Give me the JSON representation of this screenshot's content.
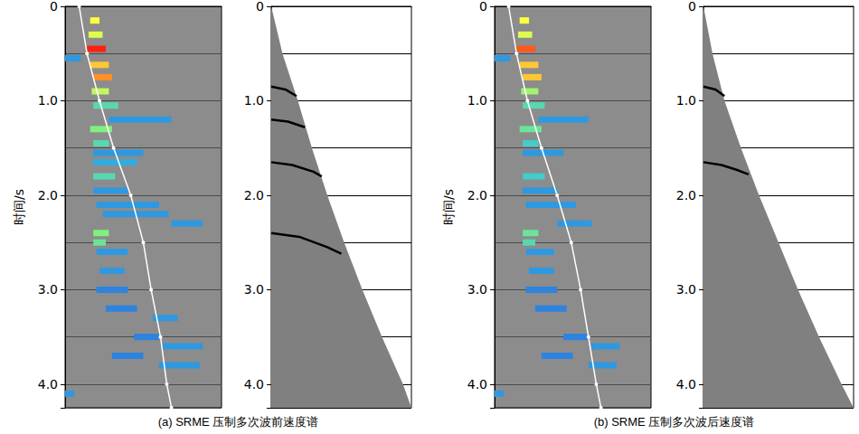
{
  "chart_data": [
    {
      "type": "heatmap",
      "title": "(a) SRME 压制多次波前速度谱",
      "ylabel": "时间/s",
      "xlim": [
        0,
        100
      ],
      "ylim": [
        0,
        4.25
      ],
      "yticks": [
        0,
        {
          "value": 1,
          "label": "1.0"
        },
        {
          "value": 2,
          "label": "2.0"
        },
        {
          "value": 3,
          "label": "3.0"
        },
        {
          "value": 4,
          "label": "4.0"
        }
      ],
      "tick_labels": "y",
      "grid": true,
      "amplitude_range": [
        0,
        1
      ],
      "colorscale": [
        "#1f4fd6",
        "#2b6fe0",
        "#30c0e0",
        "#80f080",
        "#ffff40",
        "#ff2010"
      ],
      "cells": [
        [
          0.15,
          16,
          22,
          0.8
        ],
        [
          0.3,
          15,
          24,
          0.75
        ],
        [
          0.45,
          14,
          26,
          1.0
        ],
        [
          0.55,
          0,
          10,
          0.3
        ],
        [
          0.62,
          16,
          28,
          0.85
        ],
        [
          0.75,
          18,
          30,
          0.9
        ],
        [
          0.9,
          17,
          28,
          0.7
        ],
        [
          1.05,
          18,
          34,
          0.5
        ],
        [
          1.2,
          28,
          68,
          0.3
        ],
        [
          1.3,
          16,
          30,
          0.6
        ],
        [
          1.45,
          18,
          28,
          0.5
        ],
        [
          1.55,
          18,
          50,
          0.3
        ],
        [
          1.65,
          18,
          46,
          0.35
        ],
        [
          1.8,
          18,
          32,
          0.5
        ],
        [
          1.95,
          18,
          40,
          0.3
        ],
        [
          2.1,
          20,
          60,
          0.3
        ],
        [
          2.2,
          24,
          66,
          0.3
        ],
        [
          2.3,
          68,
          88,
          0.3
        ],
        [
          2.4,
          18,
          28,
          0.6
        ],
        [
          2.5,
          18,
          26,
          0.55
        ],
        [
          2.6,
          20,
          40,
          0.3
        ],
        [
          2.8,
          22,
          38,
          0.3
        ],
        [
          3.0,
          20,
          40,
          0.25
        ],
        [
          3.2,
          26,
          46,
          0.25
        ],
        [
          3.3,
          56,
          72,
          0.3
        ],
        [
          3.5,
          44,
          60,
          0.25
        ],
        [
          3.6,
          62,
          88,
          0.3
        ],
        [
          3.7,
          30,
          50,
          0.25
        ],
        [
          3.8,
          60,
          86,
          0.3
        ],
        [
          4.1,
          0,
          6,
          0.3
        ]
      ],
      "pick": {
        "color": "#ffffff",
        "marker": "circle",
        "x": [
          9,
          14,
          22,
          31,
          42,
          50,
          55,
          61,
          65,
          68
        ],
        "y": [
          0,
          0.5,
          1.0,
          1.5,
          2.0,
          2.5,
          3.0,
          3.5,
          4.0,
          4.25
        ]
      }
    },
    {
      "type": "line",
      "xlim": [
        0,
        100
      ],
      "ylim": [
        0,
        4.25
      ],
      "yticks": [
        0,
        {
          "value": 1,
          "label": "1.0"
        },
        {
          "value": 2,
          "label": "2.0"
        },
        {
          "value": 3,
          "label": "3.0"
        },
        {
          "value": 4,
          "label": "4.0"
        }
      ],
      "tick_labels": "y",
      "grid": true,
      "mute": {
        "color": "#808080",
        "x": [
          0,
          8,
          19,
          29,
          40,
          52,
          65,
          79,
          94,
          100
        ],
        "y": [
          0,
          0.5,
          1.0,
          1.5,
          2.0,
          2.5,
          3.0,
          3.5,
          4.0,
          4.25
        ]
      },
      "series": [
        {
          "color": "#000000",
          "x": [
            0,
            10,
            18
          ],
          "values": [
            0.85,
            0.88,
            0.95
          ]
        },
        {
          "color": "#000000",
          "x": [
            0,
            12,
            24
          ],
          "values": [
            1.2,
            1.22,
            1.28
          ]
        },
        {
          "color": "#000000",
          "x": [
            0,
            15,
            30,
            36
          ],
          "values": [
            1.65,
            1.68,
            1.75,
            1.8
          ]
        },
        {
          "color": "#000000",
          "x": [
            0,
            20,
            40,
            50
          ],
          "values": [
            2.4,
            2.44,
            2.55,
            2.62
          ]
        }
      ]
    },
    {
      "type": "heatmap",
      "title": "(b) SRME 压制多次波后速度谱",
      "ylabel": "时间/s",
      "xlim": [
        0,
        100
      ],
      "ylim": [
        0,
        4.25
      ],
      "yticks": [
        0,
        {
          "value": 1,
          "label": "1.0"
        },
        {
          "value": 2,
          "label": "2.0"
        },
        {
          "value": 3,
          "label": "3.0"
        },
        {
          "value": 4,
          "label": "4.0"
        }
      ],
      "tick_labels": "y",
      "grid": true,
      "amplitude_range": [
        0,
        1
      ],
      "colorscale": [
        "#1f4fd6",
        "#2b6fe0",
        "#30c0e0",
        "#80f080",
        "#ffff40",
        "#ff2010"
      ],
      "cells": [
        [
          0.15,
          16,
          22,
          0.8
        ],
        [
          0.3,
          15,
          24,
          0.75
        ],
        [
          0.45,
          14,
          26,
          0.95
        ],
        [
          0.55,
          0,
          10,
          0.3
        ],
        [
          0.62,
          16,
          28,
          0.85
        ],
        [
          0.75,
          18,
          30,
          0.85
        ],
        [
          0.9,
          17,
          28,
          0.65
        ],
        [
          1.05,
          18,
          32,
          0.5
        ],
        [
          1.2,
          28,
          60,
          0.3
        ],
        [
          1.3,
          16,
          30,
          0.55
        ],
        [
          1.45,
          18,
          28,
          0.45
        ],
        [
          1.55,
          18,
          44,
          0.3
        ],
        [
          1.8,
          18,
          32,
          0.45
        ],
        [
          1.95,
          18,
          40,
          0.3
        ],
        [
          2.1,
          20,
          52,
          0.3
        ],
        [
          2.3,
          40,
          62,
          0.3
        ],
        [
          2.4,
          18,
          28,
          0.55
        ],
        [
          2.5,
          18,
          26,
          0.5
        ],
        [
          2.6,
          20,
          38,
          0.3
        ],
        [
          2.8,
          22,
          38,
          0.3
        ],
        [
          3.0,
          20,
          40,
          0.25
        ],
        [
          3.2,
          26,
          46,
          0.25
        ],
        [
          3.5,
          44,
          60,
          0.25
        ],
        [
          3.6,
          62,
          80,
          0.3
        ],
        [
          3.7,
          30,
          50,
          0.25
        ],
        [
          3.8,
          60,
          78,
          0.3
        ],
        [
          4.1,
          0,
          6,
          0.3
        ]
      ],
      "pick": {
        "color": "#ffffff",
        "marker": "circle",
        "x": [
          9,
          14,
          21,
          30,
          40,
          49,
          55,
          60,
          65,
          68
        ],
        "y": [
          0,
          0.5,
          1.0,
          1.5,
          2.0,
          2.5,
          3.0,
          3.5,
          4.0,
          4.25
        ]
      }
    },
    {
      "type": "line",
      "xlim": [
        0,
        100
      ],
      "ylim": [
        0,
        4.25
      ],
      "yticks": [
        0,
        {
          "value": 1,
          "label": "1.0"
        },
        {
          "value": 2,
          "label": "2.0"
        },
        {
          "value": 3,
          "label": "3.0"
        },
        {
          "value": 4,
          "label": "4.0"
        }
      ],
      "tick_labels": "y",
      "grid": true,
      "mute": {
        "color": "#808080",
        "x": [
          0,
          6,
          14,
          25,
          37,
          50,
          63,
          77,
          92,
          100
        ],
        "y": [
          0,
          0.5,
          1.0,
          1.5,
          2.0,
          2.5,
          3.0,
          3.5,
          4.0,
          4.25
        ]
      },
      "series": [
        {
          "color": "#000000",
          "x": [
            0,
            8,
            14
          ],
          "values": [
            0.85,
            0.88,
            0.95
          ]
        },
        {
          "color": "#000000",
          "x": [
            0,
            12,
            22,
            30
          ],
          "values": [
            1.65,
            1.68,
            1.73,
            1.78
          ]
        }
      ]
    }
  ]
}
